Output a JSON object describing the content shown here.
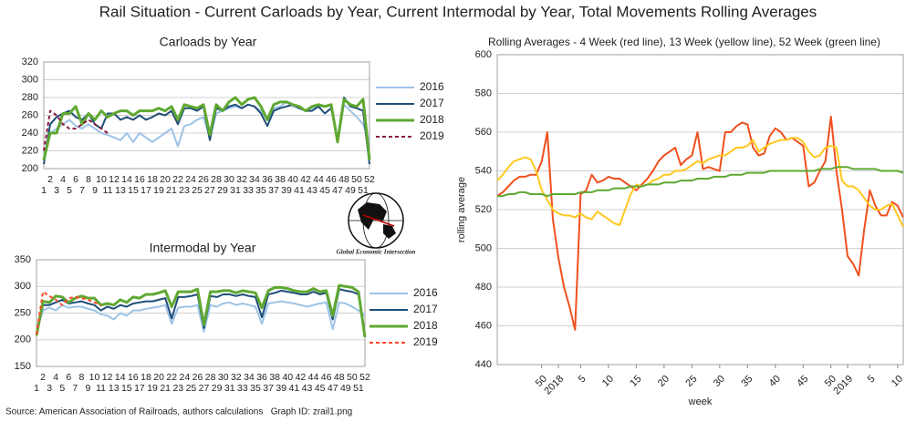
{
  "title": "Rail Situation - Current Carloads by Year, Current Intermodal by Year, Total Movements Rolling Averages",
  "source": "Source: American Association of Railroads, authors calculations   Graph ID: zrail1.png",
  "logo": "Global Economic Intersection",
  "chart_data": [
    {
      "type": "line",
      "title": "Carloads by Year",
      "categories": [
        1,
        2,
        3,
        4,
        5,
        6,
        7,
        8,
        9,
        10,
        11,
        12,
        13,
        14,
        15,
        16,
        17,
        18,
        19,
        20,
        21,
        22,
        23,
        24,
        25,
        26,
        27,
        28,
        29,
        30,
        31,
        32,
        33,
        34,
        35,
        36,
        37,
        38,
        39,
        40,
        41,
        42,
        43,
        44,
        45,
        46,
        47,
        48,
        49,
        50,
        51,
        52
      ],
      "series": [
        {
          "name": "2016",
          "color": "#9dc3e6",
          "values": [
            215,
            240,
            245,
            250,
            255,
            248,
            245,
            250,
            245,
            240,
            238,
            235,
            232,
            240,
            230,
            240,
            235,
            230,
            235,
            240,
            245,
            225,
            248,
            250,
            255,
            258,
            235,
            262,
            265,
            268,
            270,
            268,
            272,
            270,
            265,
            255,
            268,
            270,
            275,
            270,
            268,
            265,
            268,
            270,
            270,
            272,
            230,
            272,
            265,
            258,
            250,
            230
          ]
        },
        {
          "name": "2017",
          "color": "#1f4e79",
          "values": [
            205,
            250,
            258,
            262,
            265,
            258,
            255,
            262,
            250,
            245,
            262,
            262,
            255,
            258,
            255,
            260,
            255,
            258,
            262,
            260,
            265,
            250,
            268,
            268,
            265,
            270,
            232,
            268,
            265,
            270,
            272,
            268,
            272,
            270,
            262,
            248,
            265,
            268,
            270,
            272,
            268,
            265,
            265,
            270,
            262,
            268,
            232,
            280,
            270,
            268,
            265,
            205
          ]
        },
        {
          "name": "2018",
          "color": "#5fa832",
          "values": [
            210,
            240,
            240,
            262,
            262,
            270,
            250,
            262,
            255,
            265,
            258,
            262,
            265,
            265,
            260,
            265,
            265,
            265,
            268,
            265,
            270,
            255,
            272,
            270,
            268,
            272,
            238,
            272,
            265,
            275,
            280,
            272,
            278,
            280,
            270,
            255,
            272,
            275,
            275,
            272,
            270,
            265,
            270,
            272,
            270,
            272,
            230,
            278,
            272,
            270,
            278,
            210
          ]
        },
        {
          "name": "2019",
          "color": "#8b1a3c",
          "dashed": true,
          "values": [
            220,
            265,
            260,
            250,
            245,
            245,
            250,
            255,
            250,
            245,
            240,
            null,
            null,
            null,
            null,
            null,
            null,
            null,
            null,
            null,
            null,
            null,
            null,
            null,
            null,
            null,
            null,
            null,
            null,
            null,
            null,
            null,
            null,
            null,
            null,
            null,
            null,
            null,
            null,
            null,
            null,
            null,
            null,
            null,
            null,
            null,
            null,
            null,
            null,
            null,
            null,
            null
          ]
        }
      ],
      "ylim": [
        200,
        320
      ],
      "yticks": [
        200,
        220,
        240,
        260,
        280,
        300,
        320
      ],
      "grid": true,
      "legend": "right"
    },
    {
      "type": "line",
      "title": "Intermodal by Year",
      "categories": [
        1,
        2,
        3,
        4,
        5,
        6,
        7,
        8,
        9,
        10,
        11,
        12,
        13,
        14,
        15,
        16,
        17,
        18,
        19,
        20,
        21,
        22,
        23,
        24,
        25,
        26,
        27,
        28,
        29,
        30,
        31,
        32,
        33,
        34,
        35,
        36,
        37,
        38,
        39,
        40,
        41,
        42,
        43,
        44,
        45,
        46,
        47,
        48,
        49,
        50,
        51,
        52
      ],
      "series": [
        {
          "name": "2016",
          "color": "#9dc3e6",
          "values": [
            215,
            255,
            260,
            255,
            265,
            260,
            262,
            262,
            258,
            255,
            248,
            245,
            238,
            250,
            245,
            255,
            255,
            258,
            260,
            262,
            265,
            230,
            260,
            262,
            262,
            265,
            215,
            265,
            262,
            268,
            270,
            265,
            268,
            265,
            262,
            230,
            268,
            270,
            272,
            270,
            268,
            265,
            262,
            265,
            268,
            270,
            220,
            270,
            268,
            262,
            255,
            245
          ]
        },
        {
          "name": "2017",
          "color": "#1f4e79",
          "values": [
            210,
            265,
            265,
            270,
            275,
            268,
            270,
            272,
            268,
            265,
            255,
            262,
            258,
            265,
            262,
            268,
            270,
            272,
            272,
            275,
            278,
            240,
            280,
            280,
            282,
            285,
            222,
            282,
            280,
            285,
            285,
            282,
            285,
            282,
            280,
            242,
            285,
            288,
            292,
            290,
            288,
            285,
            285,
            290,
            285,
            288,
            238,
            295,
            292,
            290,
            285,
            205
          ]
        },
        {
          "name": "2018",
          "color": "#5fa832",
          "values": [
            208,
            272,
            270,
            282,
            280,
            270,
            278,
            282,
            278,
            278,
            265,
            268,
            265,
            275,
            270,
            280,
            278,
            285,
            285,
            288,
            292,
            262,
            290,
            290,
            290,
            295,
            228,
            290,
            290,
            292,
            292,
            288,
            292,
            290,
            288,
            260,
            292,
            298,
            298,
            296,
            292,
            290,
            290,
            296,
            290,
            292,
            245,
            302,
            300,
            298,
            290,
            205
          ]
        },
        {
          "name": "2019",
          "color": "#ff4b2b",
          "dashed": true,
          "values": [
            210,
            290,
            282,
            275,
            265,
            278,
            280,
            278,
            275,
            270,
            265,
            null,
            null,
            null,
            null,
            null,
            null,
            null,
            null,
            null,
            null,
            null,
            null,
            null,
            null,
            null,
            null,
            null,
            null,
            null,
            null,
            null,
            null,
            null,
            null,
            null,
            null,
            null,
            null,
            null,
            null,
            null,
            null,
            null,
            null,
            null,
            null,
            null,
            null,
            null,
            null,
            null
          ]
        }
      ],
      "ylim": [
        150,
        350
      ],
      "yticks": [
        150,
        200,
        250,
        300,
        350
      ],
      "grid": true,
      "legend": "right"
    },
    {
      "type": "line",
      "title": "Rolling Averages - 4 Week (red line), 13 Week (yellow line), 52 Week (green line)",
      "ylabel": "rolling average",
      "xlabel": "week",
      "categories": [
        null,
        null,
        null,
        null,
        null,
        null,
        null,
        null,
        50,
        null,
        null,
        2018,
        null,
        null,
        null,
        5,
        null,
        null,
        null,
        null,
        10,
        null,
        null,
        null,
        null,
        15,
        null,
        null,
        null,
        null,
        20,
        null,
        null,
        null,
        null,
        25,
        null,
        null,
        null,
        null,
        30,
        null,
        null,
        null,
        null,
        35,
        null,
        null,
        null,
        null,
        40,
        null,
        null,
        null,
        null,
        45,
        null,
        null,
        null,
        null,
        50,
        null,
        null,
        2019,
        null,
        null,
        null,
        5,
        null,
        null,
        null,
        null,
        10,
        null
      ],
      "series": [
        {
          "color": "#f0501e",
          "values": [
            527,
            529,
            532,
            535,
            537,
            537,
            538,
            538,
            545,
            560,
            515,
            495,
            480,
            470,
            458,
            528,
            530,
            538,
            534,
            535,
            537,
            536,
            536,
            534,
            532,
            530,
            533,
            536,
            540,
            545,
            548,
            550,
            552,
            543,
            546,
            548,
            560,
            541,
            542,
            541,
            540,
            560,
            560,
            563,
            565,
            564,
            552,
            548,
            549,
            558,
            562,
            560,
            556,
            557,
            555,
            553,
            532,
            534,
            540,
            545,
            568,
            540,
            520,
            496,
            492,
            486,
            510,
            530,
            522,
            517,
            517,
            524,
            522,
            516
          ]
        },
        {
          "color": "#ffc820",
          "values": [
            535,
            538,
            542,
            545,
            546,
            547,
            546,
            540,
            530,
            525,
            520,
            518,
            517,
            517,
            516,
            518,
            516,
            515,
            519,
            517,
            515,
            513,
            512,
            520,
            528,
            533,
            532,
            533,
            535,
            536,
            538,
            538,
            540,
            540,
            541,
            543,
            545,
            544,
            546,
            547,
            548,
            548,
            550,
            552,
            552,
            553,
            556,
            550,
            552,
            554,
            555,
            556,
            556,
            557,
            557,
            555,
            550,
            547,
            548,
            552,
            553,
            552,
            535,
            532,
            532,
            530,
            526,
            522,
            520,
            520,
            522,
            523,
            517,
            511
          ]
        },
        {
          "color": "#5fa832",
          "values": [
            527,
            527,
            528,
            528,
            529,
            529,
            528,
            528,
            528,
            527,
            528,
            528,
            528,
            528,
            528,
            529,
            529,
            529,
            530,
            530,
            530,
            531,
            531,
            531,
            532,
            532,
            532,
            533,
            533,
            533,
            534,
            534,
            534,
            535,
            535,
            535,
            536,
            536,
            536,
            537,
            537,
            537,
            538,
            538,
            538,
            539,
            539,
            539,
            539,
            540,
            540,
            540,
            540,
            540,
            540,
            540,
            540,
            540,
            541,
            541,
            541,
            542,
            542,
            542,
            541,
            541,
            541,
            541,
            541,
            540,
            540,
            540,
            540,
            539
          ]
        }
      ],
      "ylim": [
        440,
        600
      ],
      "yticks": [
        440,
        460,
        480,
        500,
        520,
        540,
        560,
        580,
        600
      ],
      "grid": true
    }
  ]
}
